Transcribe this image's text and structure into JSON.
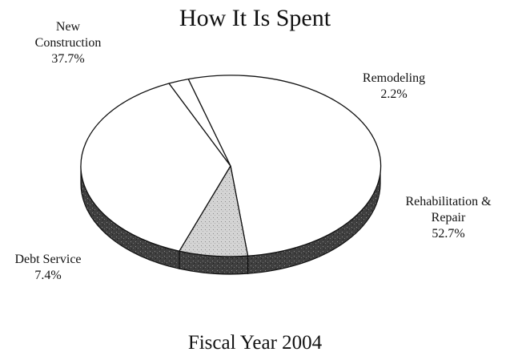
{
  "chart_data": {
    "type": "pie",
    "title": "How It Is Spent",
    "subtitle": "Fiscal Year 2004",
    "style": "3d",
    "slices": [
      {
        "label": "New Construction",
        "value": 37.7,
        "value_label": "37.7%",
        "fill": "#ffffff"
      },
      {
        "label": "Remodeling",
        "value": 2.2,
        "value_label": "2.2%",
        "fill": "#ffffff"
      },
      {
        "label": "Rehabilitation & Repair",
        "value": 52.7,
        "value_label": "52.7%",
        "fill": "#ffffff"
      },
      {
        "label": "Debt Service",
        "value": 7.4,
        "value_label": "7.4%",
        "fill": "#c8c8c8"
      }
    ],
    "colors": {
      "stroke": "#111111",
      "side_dark": "#444444",
      "background": "#ffffff"
    }
  }
}
